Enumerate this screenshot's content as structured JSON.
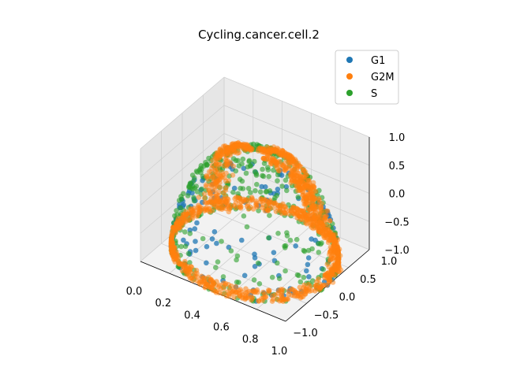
{
  "chart_data": {
    "type": "scatter",
    "projection": "3d",
    "title": "Cycling.cancer.cell.2",
    "xlabel": "",
    "ylabel": "",
    "zlabel": "",
    "xlim": [
      0.0,
      1.0
    ],
    "ylim": [
      -1.0,
      1.0
    ],
    "zlim": [
      -1.0,
      1.0
    ],
    "x_ticks": [
      "0.0",
      "0.2",
      "0.4",
      "0.6",
      "0.8",
      "1.0"
    ],
    "y_ticks": [
      "−1.0",
      "−0.5",
      "0.0",
      "0.5",
      "1.0"
    ],
    "z_ticks": [
      "−1.0",
      "−0.5",
      "0.0",
      "0.5",
      "1.0"
    ],
    "grid": true,
    "legend": {
      "position": "upper right"
    },
    "series": [
      {
        "name": "G1",
        "color": "#1f77b4",
        "shape": "points on a unit hemisphere, concentrated near the equator (z≈-1) and outer rim"
      },
      {
        "name": "G2M",
        "color": "#ff7f0e",
        "shape": "dense bands of points on the hemisphere, forming arcs across the dome and a dense ring at the base"
      },
      {
        "name": "S",
        "color": "#2ca02c",
        "shape": "points spread over the hemisphere surface, densest around the rim and base"
      }
    ]
  }
}
